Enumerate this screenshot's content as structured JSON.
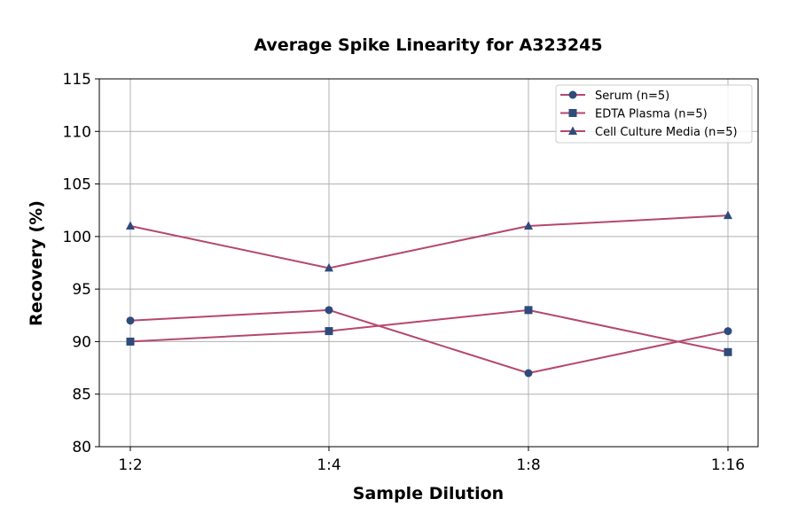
{
  "chart_data": {
    "type": "line",
    "title": "Average Spike Linearity for A323245",
    "xlabel": "Sample Dilution",
    "ylabel": "Recovery (%)",
    "categories": [
      "1:2",
      "1:4",
      "1:8",
      "1:16"
    ],
    "ylim": [
      80,
      115
    ],
    "yticks": [
      80,
      85,
      90,
      95,
      100,
      105,
      110,
      115
    ],
    "grid": true,
    "legend_position": "top-right",
    "line_color": "#b5476f",
    "marker_color": "#2f4b7c",
    "series": [
      {
        "name": "Serum (n=5)",
        "marker": "circle",
        "values": [
          92,
          93,
          87,
          91
        ]
      },
      {
        "name": "EDTA Plasma (n=5)",
        "marker": "square",
        "values": [
          90,
          91,
          93,
          89
        ]
      },
      {
        "name": "Cell Culture Media (n=5)",
        "marker": "triangle",
        "values": [
          101,
          97,
          101,
          102
        ]
      }
    ]
  }
}
